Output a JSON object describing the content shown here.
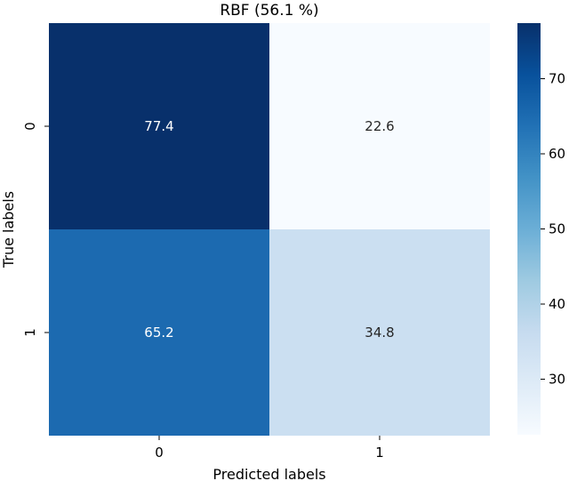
{
  "chart_data": {
    "type": "heatmap",
    "title": "RBF (56.1 %)",
    "xlabel": "Predicted labels",
    "ylabel": "True labels",
    "x_categories": [
      "0",
      "1"
    ],
    "y_categories": [
      "0",
      "1"
    ],
    "values": [
      [
        77.4,
        22.6
      ],
      [
        65.2,
        34.8
      ]
    ],
    "colormap": "Blues",
    "colorbar": {
      "ticks": [
        "30",
        "40",
        "50",
        "60",
        "70"
      ],
      "tick_values": [
        30,
        40,
        50,
        60,
        70
      ],
      "range": [
        22.6,
        77.4
      ]
    },
    "grid": false
  }
}
